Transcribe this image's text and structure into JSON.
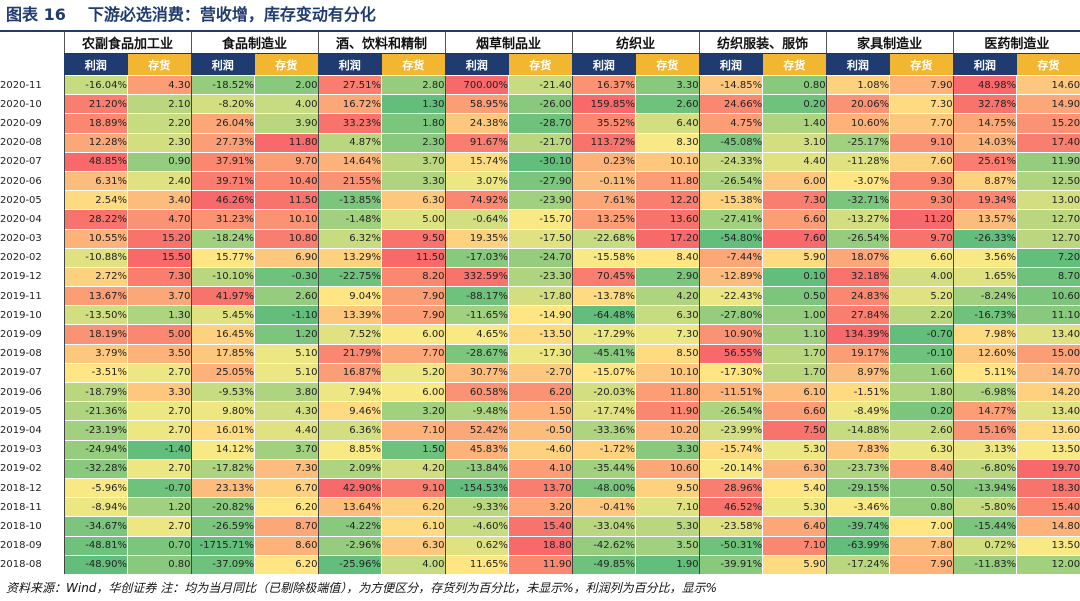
{
  "figure": {
    "label": "图表 16",
    "title": "下游必选消费：营收增，库存变动有分化"
  },
  "table": {
    "industries": [
      "农副食品加工业",
      "食品制造业",
      "酒、饮料和精制",
      "烟草制品业",
      "纺织业",
      "纺织服装、服饰",
      "家具制造业",
      "医药制造业"
    ],
    "sub_headers": [
      "利润",
      "存货"
    ],
    "rows": [
      {
        "date": "2020-11",
        "values": [
          "-16.04%",
          "4.30",
          "-18.52%",
          "2.00",
          "27.51%",
          "2.80",
          "700.00%",
          "-21.40",
          "16.37%",
          "3.30",
          "-14.85%",
          "0.80",
          "1.08%",
          "7.90",
          "48.98%",
          "14.60"
        ]
      },
      {
        "date": "2020-10",
        "values": [
          "21.20%",
          "2.10",
          "-8.20%",
          "4.00",
          "16.72%",
          "1.30",
          "58.95%",
          "-26.00",
          "159.85%",
          "2.60",
          "24.66%",
          "0.20",
          "20.06%",
          "7.30",
          "32.78%",
          "14.90"
        ]
      },
      {
        "date": "2020-09",
        "values": [
          "18.89%",
          "2.20",
          "26.04%",
          "3.90",
          "33.23%",
          "1.80",
          "24.38%",
          "-28.70",
          "35.52%",
          "6.40",
          "4.75%",
          "1.40",
          "10.60%",
          "7.70",
          "14.75%",
          "15.20"
        ]
      },
      {
        "date": "2020-08",
        "values": [
          "12.28%",
          "2.30",
          "27.73%",
          "11.80",
          "4.87%",
          "2.30",
          "91.67%",
          "-21.70",
          "113.72%",
          "8.30",
          "-45.08%",
          "3.10",
          "-25.17%",
          "9.10",
          "14.03%",
          "17.40"
        ]
      },
      {
        "date": "2020-07",
        "values": [
          "48.85%",
          "0.90",
          "37.91%",
          "9.70",
          "14.64%",
          "3.70",
          "15.74%",
          "-30.10",
          "0.23%",
          "10.10",
          "-24.33%",
          "4.40",
          "-11.28%",
          "7.60",
          "25.61%",
          "11.90"
        ]
      },
      {
        "date": "2020-06",
        "values": [
          "6.31%",
          "2.40",
          "39.71%",
          "10.40",
          "21.55%",
          "3.30",
          "3.07%",
          "-27.90",
          "-0.11%",
          "11.80",
          "-26.54%",
          "6.00",
          "-3.07%",
          "9.30",
          "8.87%",
          "12.50"
        ]
      },
      {
        "date": "2020-05",
        "values": [
          "2.54%",
          "3.40",
          "46.26%",
          "11.50",
          "-13.85%",
          "6.30",
          "74.92%",
          "-23.90",
          "7.61%",
          "12.20",
          "-15.38%",
          "7.30",
          "-32.71%",
          "9.30",
          "19.34%",
          "13.00"
        ]
      },
      {
        "date": "2020-04",
        "values": [
          "28.22%",
          "4.70",
          "31.23%",
          "10.10",
          "-1.48%",
          "5.00",
          "-0.64%",
          "-15.70",
          "13.25%",
          "13.60",
          "-27.41%",
          "6.60",
          "-13.27%",
          "11.20",
          "13.57%",
          "12.70"
        ]
      },
      {
        "date": "2020-03",
        "values": [
          "10.55%",
          "15.20",
          "-18.24%",
          "10.80",
          "6.32%",
          "9.50",
          "19.35%",
          "-17.50",
          "-22.68%",
          "17.20",
          "-54.80%",
          "7.60",
          "-26.54%",
          "9.70",
          "-26.33%",
          "12.70"
        ]
      },
      {
        "date": "2020-02",
        "values": [
          "-10.88%",
          "15.50",
          "15.77%",
          "6.90",
          "13.29%",
          "11.50",
          "-17.03%",
          "-24.70",
          "-15.58%",
          "8.40",
          "-7.44%",
          "5.90",
          "18.07%",
          "6.60",
          "3.56%",
          "7.20"
        ]
      },
      {
        "date": "2019-12",
        "values": [
          "2.72%",
          "7.30",
          "-10.10%",
          "-0.30",
          "-22.75%",
          "8.20",
          "332.59%",
          "-23.30",
          "70.45%",
          "2.90",
          "-12.89%",
          "0.10",
          "32.18%",
          "4.00",
          "1.65%",
          "8.70"
        ]
      },
      {
        "date": "2019-11",
        "values": [
          "13.67%",
          "3.70",
          "41.97%",
          "2.60",
          "9.04%",
          "7.90",
          "-88.17%",
          "-17.80",
          "-13.78%",
          "4.20",
          "-22.43%",
          "0.50",
          "24.83%",
          "5.20",
          "-8.24%",
          "10.60"
        ]
      },
      {
        "date": "2019-10",
        "values": [
          "-13.50%",
          "1.30",
          "5.45%",
          "-1.10",
          "13.39%",
          "7.90",
          "-11.65%",
          "-14.90",
          "-64.48%",
          "6.30",
          "-27.80%",
          "1.00",
          "27.84%",
          "2.20",
          "-16.73%",
          "11.10"
        ]
      },
      {
        "date": "2019-09",
        "values": [
          "18.19%",
          "5.00",
          "16.45%",
          "1.20",
          "7.52%",
          "6.00",
          "4.65%",
          "-13.50",
          "-17.29%",
          "7.30",
          "10.90%",
          "1.10",
          "134.39%",
          "-0.70",
          "7.98%",
          "13.40"
        ]
      },
      {
        "date": "2019-08",
        "values": [
          "3.79%",
          "3.50",
          "17.85%",
          "5.10",
          "21.79%",
          "7.70",
          "-28.67%",
          "-17.30",
          "-45.41%",
          "8.50",
          "56.55%",
          "1.70",
          "19.17%",
          "-0.10",
          "12.60%",
          "15.00"
        ]
      },
      {
        "date": "2019-07",
        "values": [
          "-3.51%",
          "2.70",
          "25.05%",
          "5.10",
          "16.87%",
          "5.20",
          "30.77%",
          "-2.70",
          "-15.07%",
          "10.10",
          "-17.30%",
          "1.70",
          "8.97%",
          "1.60",
          "5.11%",
          "14.70"
        ]
      },
      {
        "date": "2019-06",
        "values": [
          "-18.79%",
          "3.30",
          "-9.53%",
          "3.80",
          "7.94%",
          "6.00",
          "60.58%",
          "6.20",
          "-20.03%",
          "11.80",
          "-11.51%",
          "6.10",
          "-1.51%",
          "1.80",
          "-6.98%",
          "14.20"
        ]
      },
      {
        "date": "2019-05",
        "values": [
          "-21.36%",
          "2.70",
          "9.80%",
          "4.30",
          "9.46%",
          "3.20",
          "-9.48%",
          "1.50",
          "-17.74%",
          "11.90",
          "-26.54%",
          "6.60",
          "-8.49%",
          "0.20",
          "14.77%",
          "13.40"
        ]
      },
      {
        "date": "2019-04",
        "values": [
          "-23.19%",
          "2.70",
          "16.01%",
          "4.40",
          "6.36%",
          "7.10",
          "52.42%",
          "-0.50",
          "-33.36%",
          "10.20",
          "-23.99%",
          "7.50",
          "-14.88%",
          "2.60",
          "15.16%",
          "13.60"
        ]
      },
      {
        "date": "2019-03",
        "values": [
          "-24.94%",
          "-1.40",
          "14.12%",
          "3.70",
          "8.85%",
          "1.50",
          "45.83%",
          "-4.60",
          "-1.72%",
          "3.30",
          "-15.74%",
          "5.30",
          "7.83%",
          "6.30",
          "3.13%",
          "13.50"
        ]
      },
      {
        "date": "2019-02",
        "values": [
          "-32.28%",
          "2.70",
          "-17.82%",
          "7.30",
          "2.09%",
          "4.20",
          "-13.84%",
          "4.10",
          "-35.44%",
          "10.60",
          "-20.14%",
          "6.30",
          "-23.73%",
          "8.40",
          "-6.80%",
          "19.70"
        ]
      },
      {
        "date": "2018-12",
        "values": [
          "-5.96%",
          "-0.70",
          "23.13%",
          "6.70",
          "42.90%",
          "9.10",
          "-154.53%",
          "13.70",
          "-48.00%",
          "9.50",
          "28.96%",
          "5.40",
          "-29.15%",
          "0.50",
          "-13.94%",
          "18.30"
        ]
      },
      {
        "date": "2018-11",
        "values": [
          "-8.94%",
          "1.20",
          "-20.82%",
          "6.20",
          "13.64%",
          "6.20",
          "-9.33%",
          "3.20",
          "-0.41%",
          "7.10",
          "46.52%",
          "5.30",
          "-3.46%",
          "0.80",
          "-5.80%",
          "15.40"
        ]
      },
      {
        "date": "2018-10",
        "values": [
          "-34.67%",
          "2.70",
          "-26.59%",
          "8.70",
          "-4.22%",
          "6.10",
          "-4.60%",
          "15.40",
          "-33.04%",
          "5.30",
          "-23.58%",
          "6.40",
          "-39.74%",
          "7.00",
          "-15.44%",
          "14.80"
        ]
      },
      {
        "date": "2018-09",
        "values": [
          "-48.81%",
          "0.70",
          "-1715.71%",
          "8.60",
          "-2.96%",
          "6.30",
          "0.62%",
          "18.80",
          "-42.62%",
          "3.50",
          "-50.31%",
          "7.10",
          "-63.99%",
          "7.80",
          "0.72%",
          "13.50"
        ]
      },
      {
        "date": "2018-08",
        "values": [
          "-48.90%",
          "0.80",
          "-37.09%",
          "6.20",
          "-25.96%",
          "4.00",
          "11.65%",
          "11.90",
          "-49.85%",
          "1.90",
          "-39.91%",
          "5.90",
          "-17.24%",
          "7.90",
          "-11.83%",
          "12.00"
        ]
      }
    ]
  },
  "colors": {
    "title": "#1f3b6f",
    "profit_header": "#1f3b6f",
    "inventory_header": "#f2b630",
    "scale_low": "#63be7b",
    "scale_mid": "#ffeb84",
    "scale_high": "#f8696b"
  },
  "footer": "资料来源：Wind，华创证券   注：均为当月同比（已剔除极端值），为方便区分，存货列为百分比，未显示%，利润列为百分比，显示%"
}
